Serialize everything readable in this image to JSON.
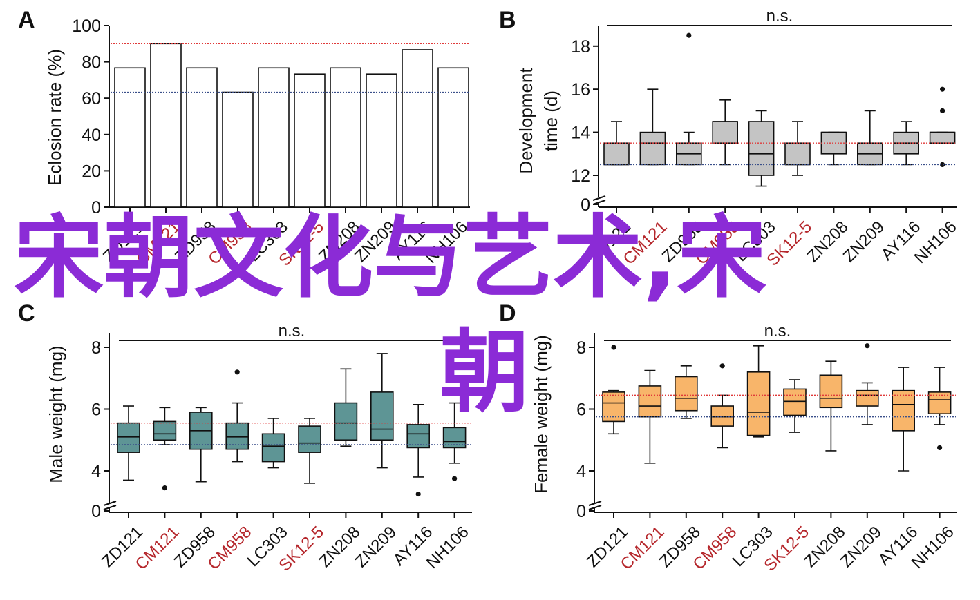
{
  "figure": {
    "colors": {
      "panelB_box": "#c4c4c4",
      "panelC_box": "#5e9595",
      "panelD_box": "#f8b56a",
      "red_line": "#e03a3a",
      "blue_line": "#3a4f8a",
      "red_label": "#b5262b",
      "watermark": "#8b2bd6"
    },
    "watermark": {
      "line1": "宋朝文化与艺术,宋",
      "line2": "朝"
    }
  },
  "chart_data": [
    {
      "panel": "A",
      "type": "bar",
      "categories": [
        "ZD121",
        "CM121",
        "ZD958",
        "CM958",
        "LC303",
        "SK12-5",
        "ZN208",
        "ZN209",
        "AY116",
        "NH106"
      ],
      "red_categories": [
        "CM121",
        "CM958",
        "SK12-5"
      ],
      "values": [
        76.7,
        90,
        76.7,
        63.3,
        76.7,
        73.3,
        76.7,
        73.3,
        86.7,
        76.7
      ],
      "ylabel": "Eclosion rate (%)",
      "ylim": [
        0,
        100
      ],
      "yticks": [
        "0",
        "20",
        "40",
        "60",
        "80",
        "100"
      ],
      "ref_lines": {
        "red": 90,
        "blue": 63.3
      }
    },
    {
      "panel": "B",
      "type": "box",
      "categories": [
        "ZD121",
        "CM121",
        "ZD958",
        "CM958",
        "LC303",
        "SK12-5",
        "ZN208",
        "ZN209",
        "AY116",
        "NH106"
      ],
      "red_categories": [
        "CM121",
        "CM958",
        "SK12-5"
      ],
      "ylabel_line1": "Development",
      "ylabel_line2": "time (d)",
      "yticks": [
        "0",
        "12",
        "14",
        "16",
        "18"
      ],
      "significance": "n.s.",
      "ref_lines": {
        "red": 13.5,
        "blue": 12.5
      },
      "boxes": [
        {
          "min": 12.5,
          "q1": 12.5,
          "median": 12.5,
          "q3": 13.5,
          "max": 14.5,
          "outliers": []
        },
        {
          "min": 12.5,
          "q1": 12.5,
          "median": 13.5,
          "q3": 14.0,
          "max": 16.0,
          "outliers": []
        },
        {
          "min": 12.5,
          "q1": 12.5,
          "median": 13.0,
          "q3": 13.5,
          "max": 14.0,
          "outliers": [
            18.5
          ]
        },
        {
          "min": 12.5,
          "q1": 13.5,
          "median": 14.5,
          "q3": 14.5,
          "max": 15.5,
          "outliers": []
        },
        {
          "min": 11.5,
          "q1": 12.0,
          "median": 13.0,
          "q3": 14.5,
          "max": 15.0,
          "outliers": []
        },
        {
          "min": 12.0,
          "q1": 12.5,
          "median": 12.5,
          "q3": 13.5,
          "max": 14.5,
          "outliers": []
        },
        {
          "min": 12.5,
          "q1": 13.0,
          "median": 14.0,
          "q3": 14.0,
          "max": 14.0,
          "outliers": []
        },
        {
          "min": 12.5,
          "q1": 12.5,
          "median": 13.0,
          "q3": 13.5,
          "max": 15.0,
          "outliers": []
        },
        {
          "min": 12.5,
          "q1": 13.0,
          "median": 13.5,
          "q3": 14.0,
          "max": 14.5,
          "outliers": []
        },
        {
          "min": 13.5,
          "q1": 13.5,
          "median": 14.0,
          "q3": 14.0,
          "max": 14.0,
          "outliers": [
            16.0,
            15.0,
            12.5
          ]
        }
      ]
    },
    {
      "panel": "C",
      "type": "box",
      "categories": [
        "ZD121",
        "CM121",
        "ZD958",
        "CM958",
        "LC303",
        "SK12-5",
        "ZN208",
        "ZN209",
        "AY116",
        "NH106"
      ],
      "red_categories": [
        "CM121",
        "CM958",
        "SK12-5"
      ],
      "ylabel": "Male weight (mg)",
      "yticks": [
        "0",
        "4",
        "6",
        "8"
      ],
      "significance": "n.s.",
      "ref_lines": {
        "red": 5.55,
        "blue": 4.85
      },
      "boxes": [
        {
          "min": 3.7,
          "q1": 4.6,
          "median": 5.1,
          "q3": 5.55,
          "max": 6.1,
          "outliers": []
        },
        {
          "min": 4.85,
          "q1": 5.0,
          "median": 5.2,
          "q3": 5.6,
          "max": 6.05,
          "outliers": [
            3.45
          ]
        },
        {
          "min": 3.65,
          "q1": 4.7,
          "median": 5.3,
          "q3": 5.9,
          "max": 6.05,
          "outliers": []
        },
        {
          "min": 4.3,
          "q1": 4.7,
          "median": 5.1,
          "q3": 5.55,
          "max": 6.2,
          "outliers": [
            7.2
          ]
        },
        {
          "min": 4.1,
          "q1": 4.3,
          "median": 4.8,
          "q3": 5.2,
          "max": 5.7,
          "outliers": []
        },
        {
          "min": 3.6,
          "q1": 4.6,
          "median": 4.9,
          "q3": 5.45,
          "max": 5.7,
          "outliers": []
        },
        {
          "min": 4.8,
          "q1": 5.0,
          "median": 5.55,
          "q3": 6.2,
          "max": 7.3,
          "outliers": []
        },
        {
          "min": 4.1,
          "q1": 5.0,
          "median": 5.35,
          "q3": 6.55,
          "max": 7.8,
          "outliers": []
        },
        {
          "min": 3.8,
          "q1": 4.75,
          "median": 5.2,
          "q3": 5.5,
          "max": 6.15,
          "outliers": [
            3.25
          ]
        },
        {
          "min": 4.25,
          "q1": 4.75,
          "median": 4.95,
          "q3": 5.4,
          "max": 6.2,
          "outliers": [
            3.75
          ]
        }
      ]
    },
    {
      "panel": "D",
      "type": "box",
      "categories": [
        "ZD121",
        "CM121",
        "ZD958",
        "CM958",
        "LC303",
        "SK12-5",
        "ZN208",
        "ZN209",
        "AY116",
        "NH106"
      ],
      "red_categories": [
        "CM121",
        "CM958",
        "SK12-5"
      ],
      "ylabel": "Female weight (mg)",
      "yticks": [
        "0",
        "4",
        "6",
        "8"
      ],
      "significance": "n.s.",
      "ref_lines": {
        "red": 6.45,
        "blue": 5.75
      },
      "boxes": [
        {
          "min": 5.2,
          "q1": 5.6,
          "median": 6.2,
          "q3": 6.55,
          "max": 6.6,
          "outliers": [
            8.0
          ]
        },
        {
          "min": 4.25,
          "q1": 5.75,
          "median": 6.1,
          "q3": 6.75,
          "max": 7.25,
          "outliers": []
        },
        {
          "min": 5.7,
          "q1": 5.95,
          "median": 6.35,
          "q3": 7.05,
          "max": 7.4,
          "outliers": []
        },
        {
          "min": 4.75,
          "q1": 5.45,
          "median": 5.75,
          "q3": 6.1,
          "max": 6.45,
          "outliers": [
            7.4
          ]
        },
        {
          "min": 5.1,
          "q1": 5.15,
          "median": 5.9,
          "q3": 7.2,
          "max": 8.05,
          "outliers": []
        },
        {
          "min": 5.25,
          "q1": 5.8,
          "median": 6.25,
          "q3": 6.65,
          "max": 6.95,
          "outliers": []
        },
        {
          "min": 4.65,
          "q1": 6.05,
          "median": 6.35,
          "q3": 7.1,
          "max": 7.55,
          "outliers": []
        },
        {
          "min": 5.5,
          "q1": 6.1,
          "median": 6.45,
          "q3": 6.6,
          "max": 6.85,
          "outliers": [
            8.05
          ]
        },
        {
          "min": 4.0,
          "q1": 5.3,
          "median": 6.15,
          "q3": 6.6,
          "max": 7.35,
          "outliers": []
        },
        {
          "min": 5.5,
          "q1": 5.85,
          "median": 6.3,
          "q3": 6.55,
          "max": 7.35,
          "outliers": [
            4.75
          ]
        }
      ]
    }
  ]
}
